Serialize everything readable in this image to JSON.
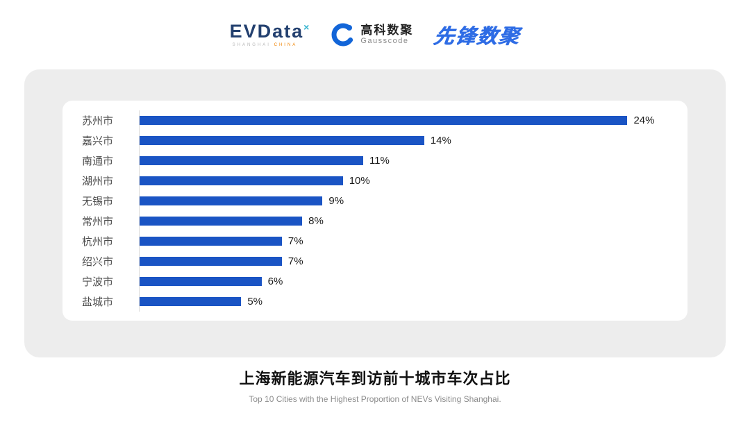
{
  "header": {
    "evdata": {
      "name": "EVData",
      "sup": "×",
      "sub_left": "SHANGHAI",
      "sub_right": "CHINA"
    },
    "gausscode": {
      "cn": "高科数聚",
      "en": "Gausscode"
    },
    "pioneer": {
      "text": "先锋数聚"
    }
  },
  "chart_data": {
    "type": "bar",
    "orientation": "horizontal",
    "title": "上海新能源汽车到访前十城市车次占比",
    "subtitle": "Top 10 Cities with the Highest Proportion of  NEVs Visiting Shanghai.",
    "categories": [
      "苏州市",
      "嘉兴市",
      "南通市",
      "湖州市",
      "无锡市",
      "常州市",
      "杭州市",
      "绍兴市",
      "宁波市",
      "盐城市"
    ],
    "values": [
      24,
      14,
      11,
      10,
      9,
      8,
      7,
      7,
      6,
      5
    ],
    "value_suffix": "%",
    "bar_color": "#1a54c4",
    "xlim": [
      0,
      26
    ],
    "grid": false,
    "legend": false
  }
}
